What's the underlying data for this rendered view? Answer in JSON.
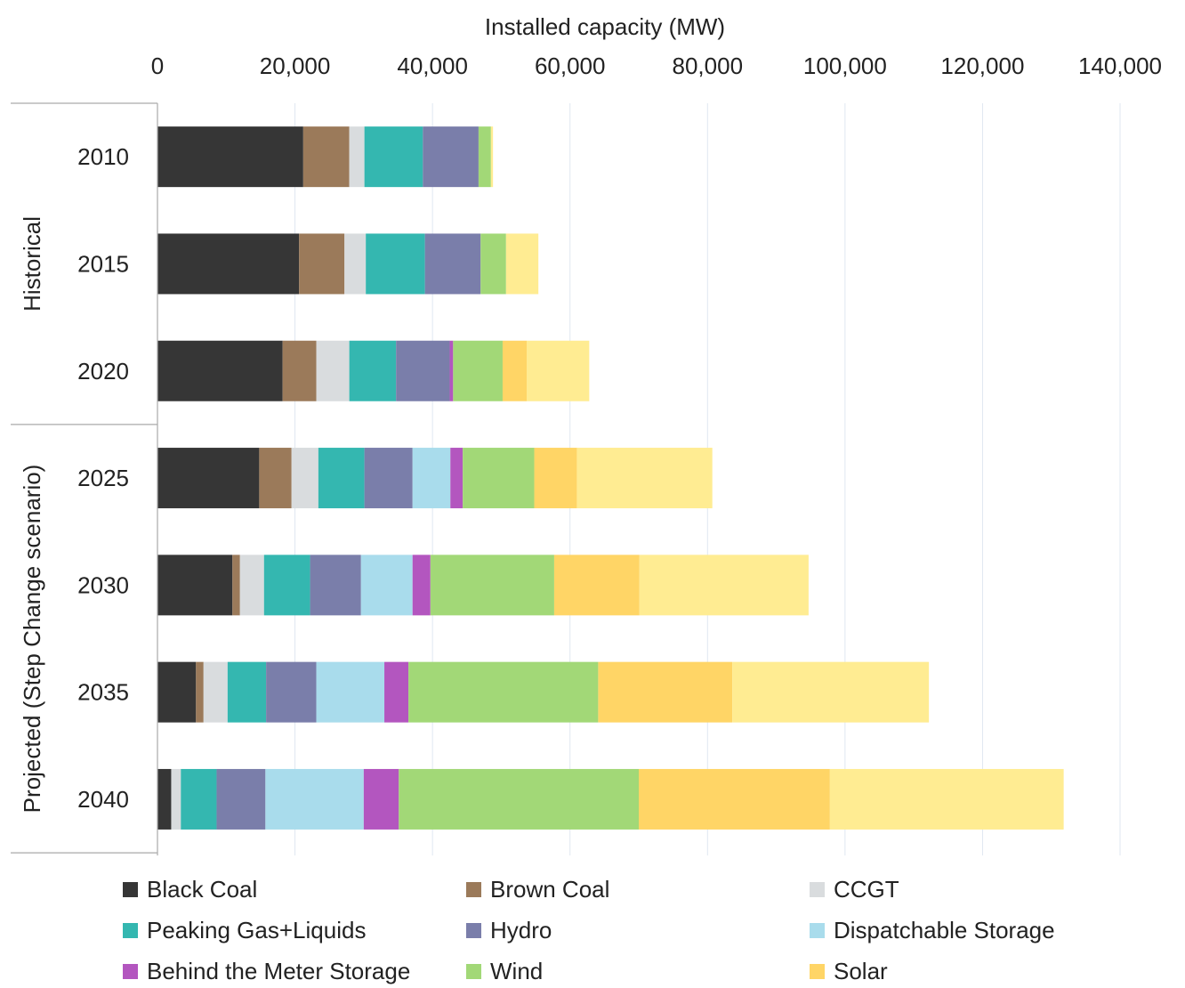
{
  "chart_data": {
    "type": "bar",
    "orientation": "horizontal",
    "stacked": true,
    "title": "",
    "xlabel": "Installed capacity (MW)",
    "ylabel": "",
    "xlim": [
      0,
      140000
    ],
    "x_ticks": [
      0,
      20000,
      40000,
      60000,
      80000,
      100000,
      120000,
      140000
    ],
    "x_tick_labels": [
      "0",
      "20,000",
      "40,000",
      "60,000",
      "80,000",
      "100,000",
      "120,000",
      "140,000"
    ],
    "x_axis_position": "top",
    "grid": "vertical",
    "legend_position": "bottom",
    "groups": [
      {
        "label": "Historical",
        "categories": [
          "2010",
          "2015",
          "2020"
        ]
      },
      {
        "label": "Projected (Step Change scenario)",
        "categories": [
          "2025",
          "2030",
          "2035",
          "2040"
        ]
      }
    ],
    "categories": [
      "2010",
      "2015",
      "2020",
      "2025",
      "2030",
      "2035",
      "2040"
    ],
    "series": [
      {
        "name": "Black Coal",
        "color": "#363636",
        "values": [
          21200,
          20600,
          18200,
          14800,
          10900,
          5600,
          2000
        ]
      },
      {
        "name": "Brown Coal",
        "color": "#9b7a5a",
        "values": [
          6700,
          6600,
          4900,
          4700,
          1100,
          1100,
          0
        ]
      },
      {
        "name": "CCGT",
        "color": "#d9dcde",
        "values": [
          2200,
          3100,
          4800,
          3900,
          3500,
          3500,
          1400
        ]
      },
      {
        "name": "Peaking Gas+Liquids",
        "color": "#34b7b0",
        "values": [
          8500,
          8600,
          6800,
          6700,
          6700,
          5600,
          5200
        ]
      },
      {
        "name": "Hydro",
        "color": "#7a7eaa",
        "values": [
          8100,
          8100,
          7800,
          7000,
          7400,
          7300,
          7100
        ]
      },
      {
        "name": "Dispatchable Storage",
        "color": "#a9dcec",
        "values": [
          0,
          0,
          0,
          5500,
          7500,
          9900,
          14300
        ]
      },
      {
        "name": "Behind the Meter Storage",
        "color": "#b356bf",
        "values": [
          0,
          0,
          500,
          1800,
          2600,
          3500,
          5100
        ]
      },
      {
        "name": "Wind",
        "color": "#a2d877",
        "values": [
          1800,
          3700,
          7200,
          10400,
          18000,
          27600,
          34900
        ]
      },
      {
        "name": "Solar",
        "color": "#ffd566",
        "values": [
          0,
          0,
          3500,
          6200,
          12400,
          19500,
          27800
        ]
      },
      {
        "name": "",
        "color": "#ffec92",
        "values": [
          300,
          4700,
          9100,
          19700,
          24600,
          28600,
          34000
        ]
      }
    ]
  },
  "legend_order": [
    0,
    1,
    2,
    3,
    4,
    5,
    6,
    7,
    8
  ]
}
